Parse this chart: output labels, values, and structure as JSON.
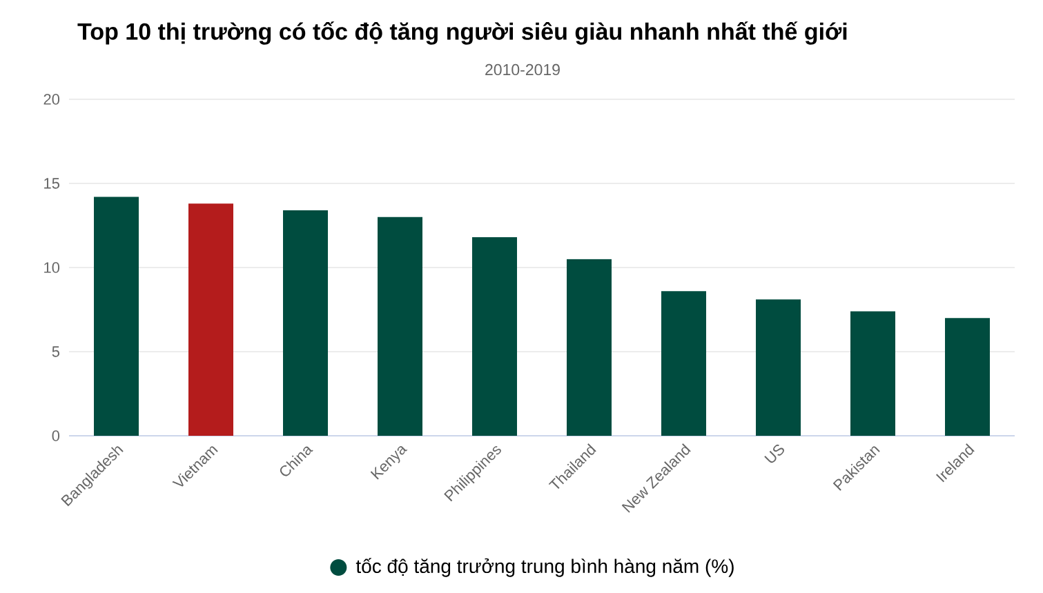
{
  "chart_data": {
    "type": "bar",
    "title": "Top 10 thị trường có tốc độ tăng người siêu giàu nhanh nhất thế giới",
    "subtitle": "2010-2019",
    "categories": [
      "Bangladesh",
      "Vietnam",
      "China",
      "Kenya",
      "Philippines",
      "Thailand",
      "New Zealand",
      "US",
      "Pakistan",
      "Ireland"
    ],
    "series": [
      {
        "name": "tốc độ tăng trưởng trung bình hàng năm (%)",
        "values": [
          14.2,
          13.8,
          13.4,
          13.0,
          11.8,
          10.5,
          8.6,
          8.1,
          7.4,
          7.0
        ],
        "colors": [
          "#004c3f",
          "#b41c1c",
          "#004c3f",
          "#004c3f",
          "#004c3f",
          "#004c3f",
          "#004c3f",
          "#004c3f",
          "#004c3f",
          "#004c3f"
        ]
      }
    ],
    "ylim": [
      0,
      20
    ],
    "yticks": [
      0,
      5,
      10,
      15,
      20
    ],
    "grid": "y",
    "legend": "bottom"
  }
}
